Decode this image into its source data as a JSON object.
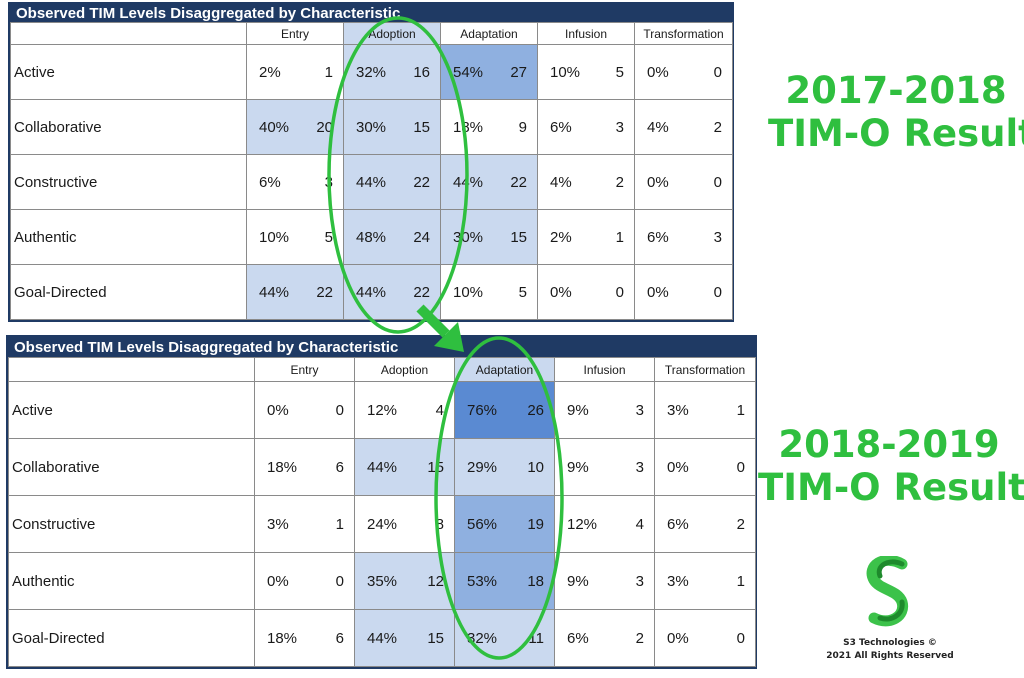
{
  "chart_data": [
    {
      "type": "table",
      "title": "Observed TIM Levels Disaggregated by Characteristic",
      "caption": [
        "2017-2018",
        "TIM-O Results"
      ],
      "columns": [
        "Entry",
        "Adoption",
        "Adaptation",
        "Infusion",
        "Transformation"
      ],
      "rows": [
        {
          "label": "Active",
          "cells": [
            {
              "pct": "2%",
              "n": 1
            },
            {
              "pct": "32%",
              "n": 16
            },
            {
              "pct": "54%",
              "n": 27
            },
            {
              "pct": "10%",
              "n": 5
            },
            {
              "pct": "0%",
              "n": 0
            }
          ]
        },
        {
          "label": "Collaborative",
          "cells": [
            {
              "pct": "40%",
              "n": 20
            },
            {
              "pct": "30%",
              "n": 15
            },
            {
              "pct": "18%",
              "n": 9
            },
            {
              "pct": "6%",
              "n": 3
            },
            {
              "pct": "4%",
              "n": 2
            }
          ]
        },
        {
          "label": "Constructive",
          "cells": [
            {
              "pct": "6%",
              "n": 3
            },
            {
              "pct": "44%",
              "n": 22
            },
            {
              "pct": "44%",
              "n": 22
            },
            {
              "pct": "4%",
              "n": 2
            },
            {
              "pct": "0%",
              "n": 0
            }
          ]
        },
        {
          "label": "Authentic",
          "cells": [
            {
              "pct": "10%",
              "n": 5
            },
            {
              "pct": "48%",
              "n": 24
            },
            {
              "pct": "30%",
              "n": 15
            },
            {
              "pct": "2%",
              "n": 1
            },
            {
              "pct": "6%",
              "n": 3
            }
          ]
        },
        {
          "label": "Goal-Directed",
          "cells": [
            {
              "pct": "44%",
              "n": 22
            },
            {
              "pct": "44%",
              "n": 22
            },
            {
              "pct": "10%",
              "n": 5
            },
            {
              "pct": "0%",
              "n": 0
            },
            {
              "pct": "0%",
              "n": 0
            }
          ]
        }
      ],
      "highlight_levels": [
        [
          0,
          1,
          2,
          0,
          0
        ],
        [
          1,
          1,
          0,
          0,
          0
        ],
        [
          0,
          1,
          1,
          0,
          0
        ],
        [
          0,
          1,
          1,
          0,
          0
        ],
        [
          1,
          1,
          0,
          0,
          0
        ]
      ],
      "highlight_colors": [
        "#ffffff",
        "#cad9ef",
        "#8fb0e0",
        "#5a8ad2"
      ],
      "highlighted_header": 1
    },
    {
      "type": "table",
      "title": "Observed TIM Levels Disaggregated by Characteristic",
      "caption": [
        "2018-2019",
        "TIM-O Results"
      ],
      "columns": [
        "Entry",
        "Adoption",
        "Adaptation",
        "Infusion",
        "Transformation"
      ],
      "rows": [
        {
          "label": "Active",
          "cells": [
            {
              "pct": "0%",
              "n": 0
            },
            {
              "pct": "12%",
              "n": 4
            },
            {
              "pct": "76%",
              "n": 26
            },
            {
              "pct": "9%",
              "n": 3
            },
            {
              "pct": "3%",
              "n": 1
            }
          ]
        },
        {
          "label": "Collaborative",
          "cells": [
            {
              "pct": "18%",
              "n": 6
            },
            {
              "pct": "44%",
              "n": 15
            },
            {
              "pct": "29%",
              "n": 10
            },
            {
              "pct": "9%",
              "n": 3
            },
            {
              "pct": "0%",
              "n": 0
            }
          ]
        },
        {
          "label": "Constructive",
          "cells": [
            {
              "pct": "3%",
              "n": 1
            },
            {
              "pct": "24%",
              "n": 8
            },
            {
              "pct": "56%",
              "n": 19
            },
            {
              "pct": "12%",
              "n": 4
            },
            {
              "pct": "6%",
              "n": 2
            }
          ]
        },
        {
          "label": "Authentic",
          "cells": [
            {
              "pct": "0%",
              "n": 0
            },
            {
              "pct": "35%",
              "n": 12
            },
            {
              "pct": "53%",
              "n": 18
            },
            {
              "pct": "9%",
              "n": 3
            },
            {
              "pct": "3%",
              "n": 1
            }
          ]
        },
        {
          "label": "Goal-Directed",
          "cells": [
            {
              "pct": "18%",
              "n": 6
            },
            {
              "pct": "44%",
              "n": 15
            },
            {
              "pct": "32%",
              "n": 11
            },
            {
              "pct": "6%",
              "n": 2
            },
            {
              "pct": "0%",
              "n": 0
            }
          ]
        }
      ],
      "highlight_levels": [
        [
          0,
          0,
          3,
          0,
          0
        ],
        [
          0,
          1,
          1,
          0,
          0
        ],
        [
          0,
          0,
          2,
          0,
          0
        ],
        [
          0,
          1,
          2,
          0,
          0
        ],
        [
          0,
          1,
          1,
          0,
          0
        ]
      ],
      "highlight_colors": [
        "#ffffff",
        "#cad9ef",
        "#8fb0e0",
        "#5a8ad2"
      ],
      "highlighted_header": 2
    }
  ],
  "annotations": {
    "circle_color": "#2fbf3f",
    "arrow_color": "#2fbf3f"
  },
  "logo": {
    "icon": "s3-logo-icon",
    "company": "S3 Technologies ©",
    "rights": "2021 All Rights Reserved"
  }
}
